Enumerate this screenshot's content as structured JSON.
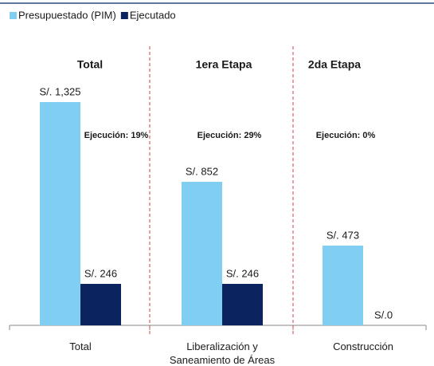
{
  "chart_data": {
    "type": "bar",
    "categories": [
      "Total",
      "Liberalización y\nSaneamiento de Áreas",
      "Construcción"
    ],
    "series": [
      {
        "name": "Presupuestado (PIM)",
        "color": "#80cff2",
        "values": [
          1325,
          852,
          473
        ],
        "value_labels": [
          "S/. 1,325",
          "S/. 852",
          "S/. 473"
        ]
      },
      {
        "name": "Ejecutado",
        "color": "#0b2460",
        "values": [
          246,
          246,
          0
        ],
        "value_labels": [
          "S/. 246",
          "S/. 246",
          "S/.0"
        ]
      }
    ],
    "annotations": [
      {
        "title": "Total",
        "text": "Ejecución: 19%"
      },
      {
        "title": "1era Etapa",
        "text": "Ejecución: 29%"
      },
      {
        "title": "2da Etapa",
        "text": "Ejecución: 0%"
      }
    ]
  }
}
